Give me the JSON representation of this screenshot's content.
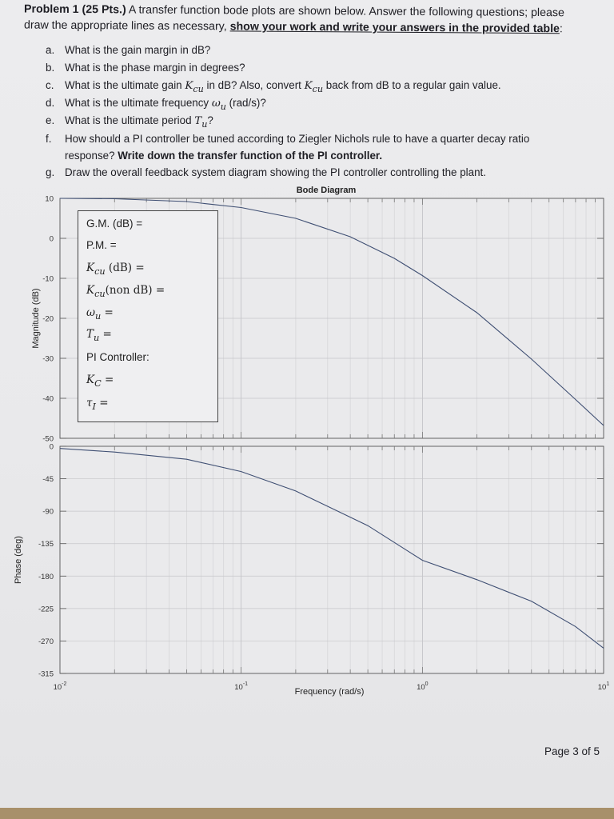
{
  "header": {
    "problem_label": "Problem 1 (25 Pts.)",
    "intro_1": " A transfer function bode plots are shown below. Answer the following questions; please",
    "intro_2": "draw the appropriate lines as necessary, ",
    "intro_emph": "show your work and write your answers in the provided table",
    "intro_end": ":"
  },
  "questions": [
    {
      "label": "a.",
      "text": "What is the gain margin in dB?"
    },
    {
      "label": "b.",
      "text": "What is the phase margin in degrees?"
    },
    {
      "label": "c.",
      "text_pre": "What is the ultimate gain ",
      "sym": "K",
      "sub": "cu",
      "text_mid": " in dB? Also, convert ",
      "sym2": "K",
      "sub2": "cu",
      "text_post": " back from dB to a regular gain value."
    },
    {
      "label": "d.",
      "text_pre": "What is the ultimate frequency ",
      "sym": "ω",
      "sub": "u",
      "text_post": " (rad/s)?"
    },
    {
      "label": "e.",
      "text_pre": "What is the ultimate period ",
      "sym": "T",
      "sub": "u",
      "text_post": "?"
    },
    {
      "label": "f.",
      "text_1": "How should a PI controller be tuned according to Ziegler Nichols rule to have a quarter decay ratio",
      "text_2a": "response? ",
      "text_2b": "Write down the transfer function of the PI controller."
    },
    {
      "label": "g.",
      "text": "Draw the overall feedback system diagram showing the PI controller controlling the plant."
    }
  ],
  "answer_table": {
    "gm": "G.M. (dB) =",
    "pm": "P.M. =",
    "kcu_db_sym": "K",
    "kcu_db_sub": "cu",
    "kcu_db_rest": " (dB) =",
    "kcu_non_sym": "K",
    "kcu_non_sub": "cu",
    "kcu_non_rest": "(non dB) =",
    "wu_sym": "ω",
    "wu_sub": "u",
    "wu_rest": " =",
    "tu_sym": "T",
    "tu_sub": "u",
    "tu_rest": " =",
    "pi_label": "PI Controller:",
    "kc_sym": "K",
    "kc_sub": "C",
    "kc_rest": " =",
    "ti_sym": "τ",
    "ti_sub": "I",
    "ti_rest": " ="
  },
  "chart_data": [
    {
      "type": "line",
      "title": "Bode Diagram",
      "xlabel": "",
      "ylabel": "Magnitude (dB)",
      "xscale": "log",
      "xlim": [
        0.01,
        10
      ],
      "ylim": [
        -50,
        10
      ],
      "yticks": [
        10,
        0,
        -10,
        -20,
        -30,
        -40,
        -50
      ],
      "grid": true,
      "x": [
        0.01,
        0.02,
        0.05,
        0.1,
        0.2,
        0.4,
        0.7,
        1,
        2,
        4,
        7,
        10
      ],
      "y": [
        10,
        9.9,
        9.2,
        7.7,
        5.0,
        0.4,
        -5.0,
        -9.3,
        -18.6,
        -30.2,
        -40.3,
        -46.8
      ]
    },
    {
      "type": "line",
      "title": "",
      "xlabel": "Frequency (rad/s)",
      "ylabel": "Phase (deg)",
      "xscale": "log",
      "xlim": [
        0.01,
        10
      ],
      "ylim": [
        -315,
        0
      ],
      "yticks": [
        0,
        -45,
        -90,
        -135,
        -180,
        -225,
        -270,
        -315
      ],
      "xtick_labels": [
        "10-2",
        "10-1",
        "100",
        "101"
      ],
      "grid": true,
      "x": [
        0.01,
        0.02,
        0.05,
        0.1,
        0.2,
        0.5,
        1,
        2,
        4,
        7,
        10
      ],
      "y": [
        -3,
        -8,
        -18,
        -35,
        -62,
        -110,
        -158,
        -185,
        -215,
        -250,
        -280
      ]
    }
  ],
  "footer": {
    "page": "Page 3 of 5"
  }
}
